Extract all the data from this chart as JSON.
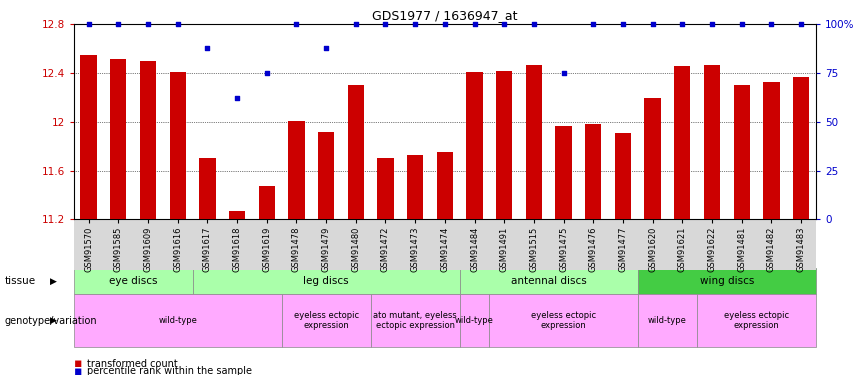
{
  "title": "GDS1977 / 1636947_at",
  "samples": [
    "GSM91570",
    "GSM91585",
    "GSM91609",
    "GSM91616",
    "GSM91617",
    "GSM91618",
    "GSM91619",
    "GSM91478",
    "GSM91479",
    "GSM91480",
    "GSM91472",
    "GSM91473",
    "GSM91474",
    "GSM91484",
    "GSM91491",
    "GSM91515",
    "GSM91475",
    "GSM91476",
    "GSM91477",
    "GSM91620",
    "GSM91621",
    "GSM91622",
    "GSM91481",
    "GSM91482",
    "GSM91483"
  ],
  "bar_values": [
    12.55,
    12.52,
    12.5,
    12.41,
    11.7,
    11.27,
    11.47,
    12.01,
    11.92,
    12.3,
    11.7,
    11.73,
    11.75,
    12.41,
    12.42,
    12.47,
    11.97,
    11.98,
    11.91,
    12.2,
    12.46,
    12.47,
    12.3,
    12.33,
    12.37
  ],
  "percentile_values": [
    100,
    100,
    100,
    100,
    88,
    62,
    75,
    100,
    88,
    100,
    100,
    100,
    100,
    100,
    100,
    100,
    75,
    100,
    100,
    100,
    100,
    100,
    100,
    100,
    100
  ],
  "ymin": 11.2,
  "ymax": 12.8,
  "yticks": [
    11.2,
    11.6,
    12.0,
    12.4,
    12.8
  ],
  "ytick_labels": [
    "11.2",
    "11.6",
    "12",
    "12.4",
    "12.8"
  ],
  "y2ticks": [
    0,
    25,
    50,
    75,
    100
  ],
  "y2tick_labels": [
    "0",
    "25",
    "50",
    "75",
    "100%"
  ],
  "bar_color": "#cc0000",
  "dot_color": "#0000cc",
  "tissue_data": [
    {
      "label": "eye discs",
      "start": 0,
      "end": 3,
      "color": "#aaffaa"
    },
    {
      "label": "leg discs",
      "start": 4,
      "end": 12,
      "color": "#aaffaa"
    },
    {
      "label": "antennal discs",
      "start": 13,
      "end": 18,
      "color": "#aaffaa"
    },
    {
      "label": "wing discs",
      "start": 19,
      "end": 24,
      "color": "#44cc44"
    }
  ],
  "geno_data": [
    {
      "label": "wild-type",
      "start": 0,
      "end": 6,
      "color": "#ffaaff"
    },
    {
      "label": "eyeless ectopic\nexpression",
      "start": 7,
      "end": 9,
      "color": "#ffaaff"
    },
    {
      "label": "ato mutant, eyeless\nectopic expression",
      "start": 10,
      "end": 12,
      "color": "#ffaaff"
    },
    {
      "label": "wild-type",
      "start": 13,
      "end": 13,
      "color": "#ffaaff"
    },
    {
      "label": "eyeless ectopic\nexpression",
      "start": 14,
      "end": 18,
      "color": "#ffaaff"
    },
    {
      "label": "wild-type",
      "start": 19,
      "end": 20,
      "color": "#ffaaff"
    },
    {
      "label": "eyeless ectopic\nexpression",
      "start": 21,
      "end": 24,
      "color": "#ffaaff"
    }
  ]
}
